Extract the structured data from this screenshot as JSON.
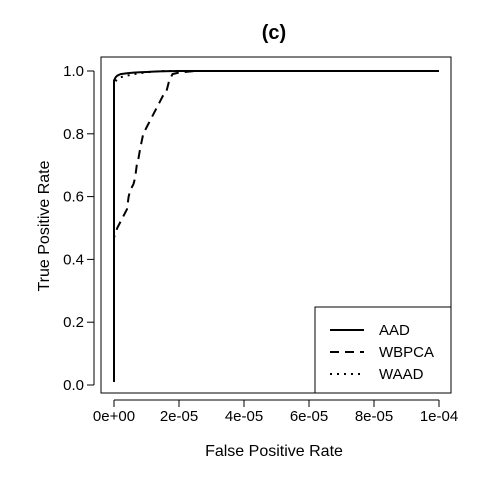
{
  "chart_data": {
    "type": "line",
    "title": "(c)",
    "xlabel": "False Positive Rate",
    "ylabel": "True Positive Rate",
    "xlim": [
      0,
      0.0001
    ],
    "ylim": [
      0,
      1
    ],
    "x_ticks": [
      {
        "value": 0,
        "label": "0e+00"
      },
      {
        "value": 2e-05,
        "label": "2e-05"
      },
      {
        "value": 4e-05,
        "label": "4e-05"
      },
      {
        "value": 6e-05,
        "label": "6e-05"
      },
      {
        "value": 8e-05,
        "label": "8e-05"
      },
      {
        "value": 0.0001,
        "label": "1e-04"
      }
    ],
    "y_ticks": [
      {
        "value": 0.0,
        "label": "0.0"
      },
      {
        "value": 0.2,
        "label": "0.2"
      },
      {
        "value": 0.4,
        "label": "0.4"
      },
      {
        "value": 0.6,
        "label": "0.6"
      },
      {
        "value": 0.8,
        "label": "0.8"
      },
      {
        "value": 1.0,
        "label": "1.0"
      }
    ],
    "grid": false,
    "legend_position": "bottom-right",
    "series": [
      {
        "name": "AAD",
        "style": "solid",
        "color": "#000000",
        "x": [
          0,
          0,
          5e-07,
          1e-06,
          2e-06,
          4e-06,
          6e-06,
          8e-06,
          1e-05,
          1.2e-05,
          1.5e-05,
          2e-05,
          0.0001
        ],
        "y": [
          0.01,
          0.97,
          0.98,
          0.985,
          0.99,
          0.993,
          0.995,
          0.996,
          0.997,
          0.998,
          0.999,
          1.0,
          1.0
        ]
      },
      {
        "name": "WBPCA",
        "style": "dashed",
        "color": "#000000",
        "x": [
          0,
          0,
          1e-06,
          2e-06,
          3e-06,
          4e-06,
          4.5e-06,
          5e-06,
          6e-06,
          6.5e-06,
          7e-06,
          7.5e-06,
          8e-06,
          9e-06,
          1e-05,
          1.1e-05,
          1.2e-05,
          1.3e-05,
          1.4e-05,
          1.5e-05,
          1.6e-05,
          1.65e-05,
          1.7e-05,
          1.75e-05,
          1.8e-05,
          2e-05,
          2.5e-05,
          0.0001
        ],
        "y": [
          0.4,
          0.47,
          0.5,
          0.52,
          0.54,
          0.56,
          0.6,
          0.62,
          0.64,
          0.66,
          0.7,
          0.72,
          0.75,
          0.8,
          0.82,
          0.84,
          0.86,
          0.88,
          0.9,
          0.92,
          0.93,
          0.95,
          0.97,
          0.98,
          0.99,
          0.995,
          1.0,
          1.0
        ]
      },
      {
        "name": "WAAD",
        "style": "dotted",
        "color": "#000000",
        "x": [
          0,
          0,
          1e-06,
          2e-06,
          4e-06,
          6e-06,
          8e-06,
          1e-05,
          1.2e-05,
          1.4e-05,
          1.6e-05,
          2e-05,
          0.0001
        ],
        "y": [
          0.01,
          0.96,
          0.975,
          0.98,
          0.985,
          0.99,
          0.993,
          0.996,
          0.998,
          0.999,
          1.0,
          1.0,
          1.0
        ]
      }
    ]
  }
}
